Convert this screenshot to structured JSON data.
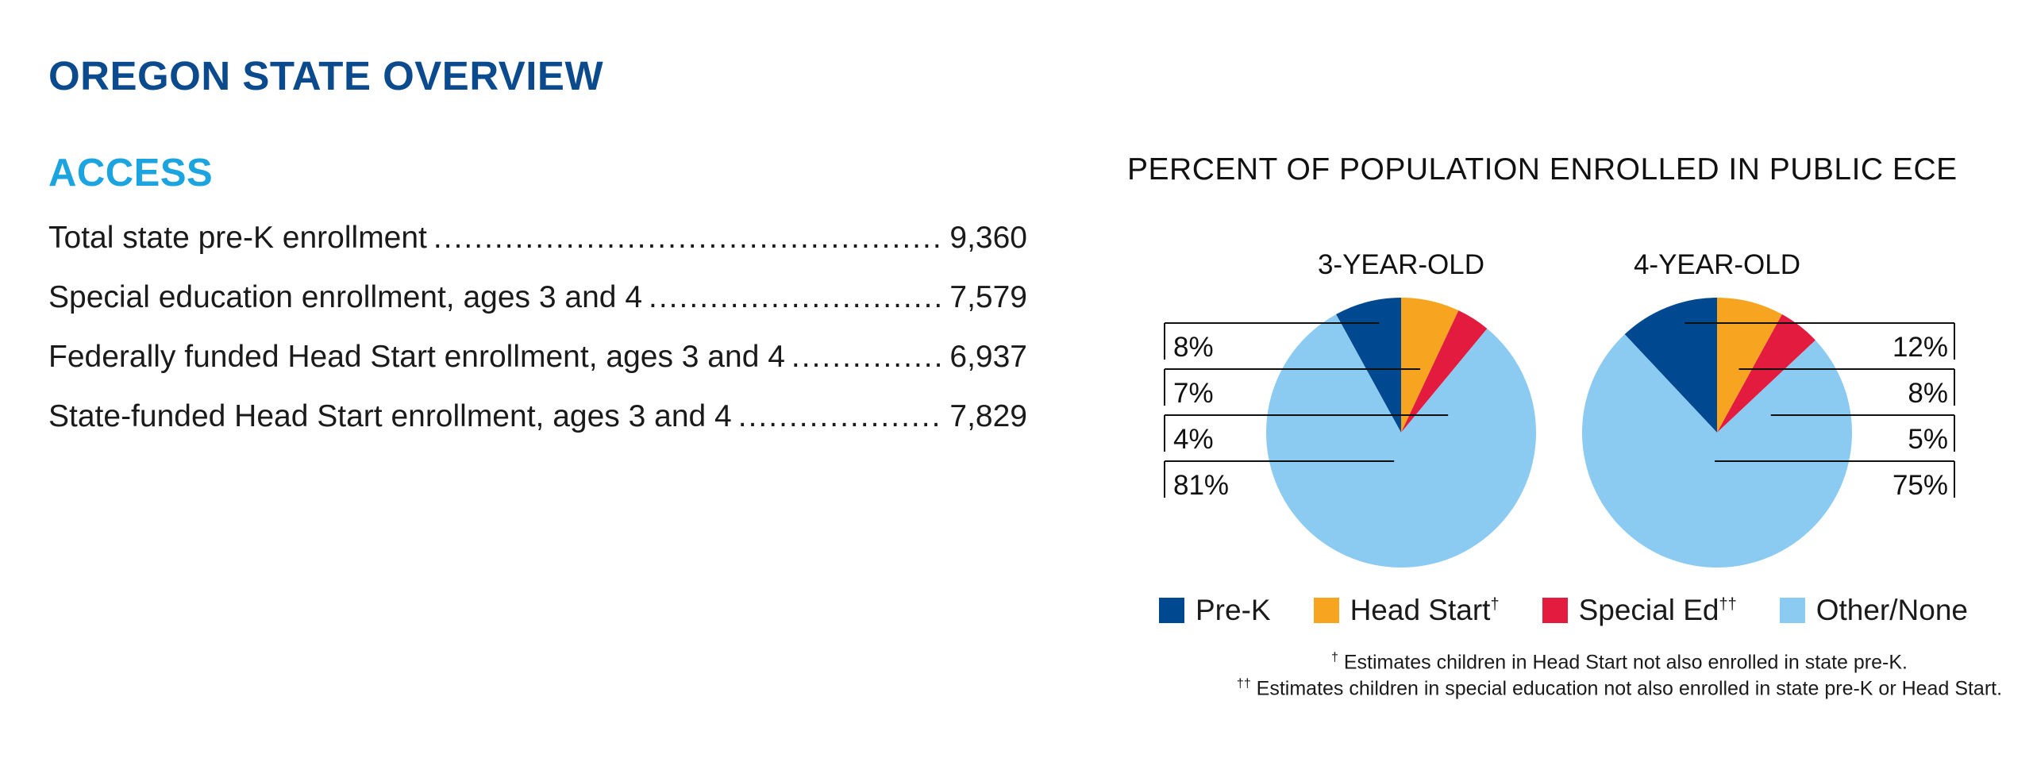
{
  "page": {
    "title": "OREGON STATE OVERVIEW",
    "section_title": "ACCESS"
  },
  "stats": [
    {
      "label": "Total state pre-K enrollment",
      "value": "9,360"
    },
    {
      "label": "Special education enrollment, ages 3 and 4",
      "value": "7,579"
    },
    {
      "label": "Federally funded Head Start enrollment, ages 3 and 4",
      "value": "6,937"
    },
    {
      "label": "State-funded Head Start enrollment, ages 3 and 4",
      "value": "7,829"
    }
  ],
  "chart_data": {
    "type": "pie",
    "title": "PERCENT OF POPULATION ENROLLED IN PUBLIC ECE",
    "categories": [
      "Pre-K",
      "Head Start",
      "Special Ed",
      "Other/None"
    ],
    "category_markers": [
      "",
      "†",
      "††",
      ""
    ],
    "colors": [
      "#004990",
      "#f7a520",
      "#e31b3e",
      "#8ccbf1"
    ],
    "pies": [
      {
        "name": "3-YEAR-OLD",
        "values": [
          8,
          7,
          4,
          81
        ],
        "labels": [
          "8%",
          "7%",
          "4%",
          "81%"
        ],
        "label_side": "left"
      },
      {
        "name": "4-YEAR-OLD",
        "values": [
          12,
          8,
          5,
          75
        ],
        "labels": [
          "12%",
          "8%",
          "5%",
          "75%"
        ],
        "label_side": "right"
      }
    ],
    "legend_position": "bottom",
    "footnotes": [
      {
        "marker": "†",
        "text": " Estimates children in Head Start not also enrolled in state pre-K."
      },
      {
        "marker": "††",
        "text": " Estimates children in special education not also enrolled in state pre-K or Head Start."
      }
    ]
  }
}
